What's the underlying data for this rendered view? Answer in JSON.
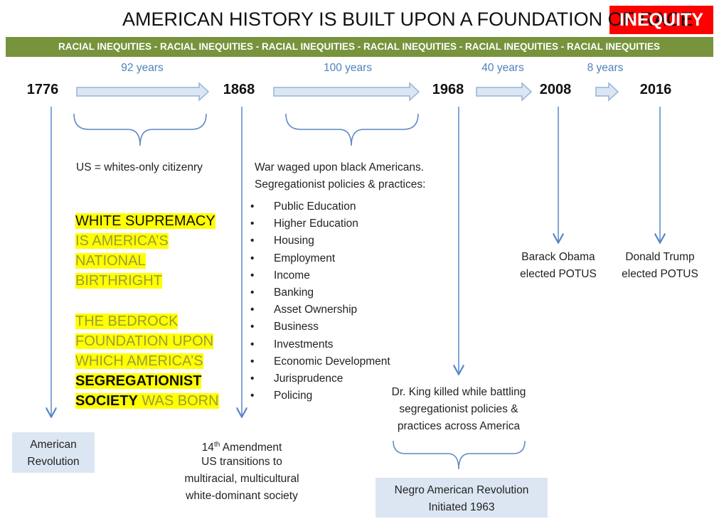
{
  "title": {
    "text": "AMERICAN HISTORY IS BUILT UPON A FOUNDATION OF RACE",
    "highlight": "INEQUITY"
  },
  "banner": "RACIAL INEQUITIES - RACIAL INEQUITIES - RACIAL INEQUITIES - RACIAL INEQUITIES - RACIAL INEQUITIES - RACIAL INEQUITIES",
  "timeline": {
    "years": [
      "1776",
      "1868",
      "1968",
      "2008",
      "2016"
    ],
    "intervals": [
      "92 years",
      "100 years",
      "40 years",
      "8 years"
    ]
  },
  "notes": {
    "citizenry": "US = whites-only citizenry",
    "war": [
      "War waged upon black Americans.",
      "Segregationist policies & practices:"
    ],
    "policies": [
      "Public Education",
      "Higher Education",
      "Housing",
      "Employment",
      "Income",
      "Banking",
      "Asset Ownership",
      "Business",
      "Investments",
      "Economic Development",
      "Jurisprudence",
      "Policing"
    ]
  },
  "callout": {
    "lines": [
      [
        {
          "text": "WHITE SUPREMACY",
          "emphasis": true
        }
      ],
      [
        {
          "text": "IS AMERICA’S",
          "emphasis": false
        }
      ],
      [
        {
          "text": "NATIONAL",
          "emphasis": false
        }
      ],
      [
        {
          "text": "BIRTHRIGHT",
          "emphasis": false
        }
      ],
      [
        {
          "text": "THE BEDROCK",
          "emphasis": false
        }
      ],
      [
        {
          "text": "FOUNDATION UPON",
          "emphasis": false
        }
      ],
      [
        {
          "text": "WHICH AMERICA’S",
          "emphasis": false
        }
      ],
      [
        {
          "text": "SEGREGATIONIST",
          "emphasis": true
        }
      ],
      [
        {
          "text": "SOCIETY",
          "emphasis": true
        },
        {
          "text": " WAS BORN",
          "emphasis": false
        }
      ]
    ]
  },
  "events": {
    "revolution": [
      "American",
      "Revolution"
    ],
    "amendment": {
      "number": "14",
      "suffix": "th",
      "rest": " Amendment",
      "lines": [
        "US transitions to",
        "multiracial, multicultural",
        "white-dominant society"
      ]
    },
    "king": [
      "Dr. King killed while battling",
      "segregationist policies &",
      "practices across America"
    ],
    "negro_revolution": [
      "Negro American Revolution",
      "Initiated 1963"
    ],
    "obama": [
      "Barack Obama",
      "elected POTUS"
    ],
    "trump": [
      "Donald Trump",
      "elected POTUS"
    ]
  }
}
